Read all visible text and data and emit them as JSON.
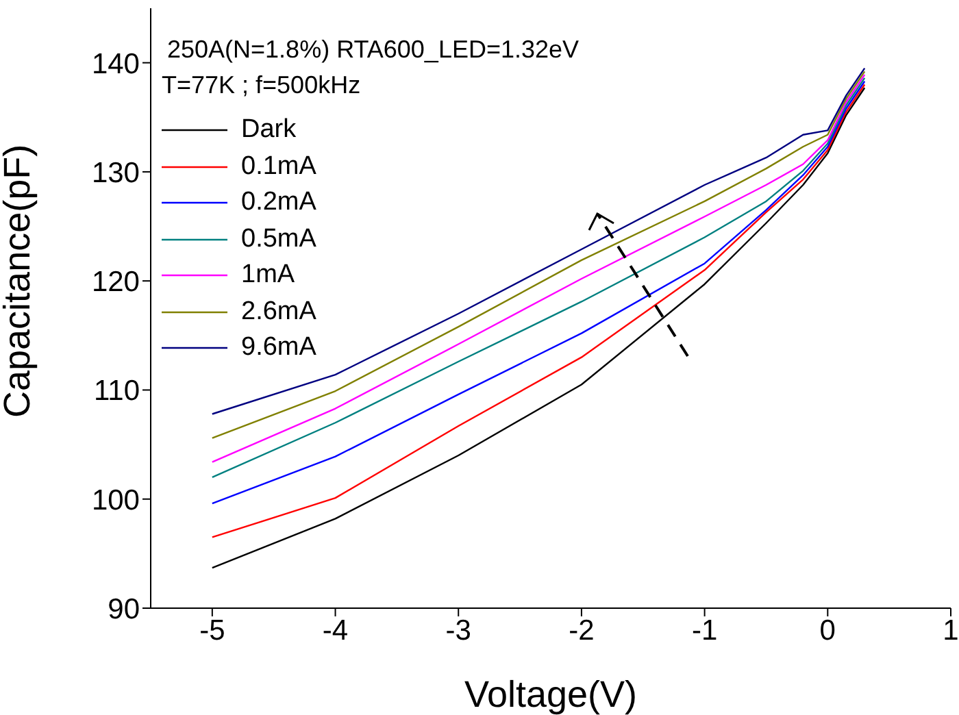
{
  "chart_data": {
    "type": "line",
    "title": "250A(N=1.8%) RTA600_LED=1.32eV",
    "subtitle": "T=77K ; f=500kHz",
    "xlabel": "Voltage(V)",
    "ylabel": "Capacitance(pF)",
    "x": [
      -5,
      -4,
      -3,
      -2,
      -1,
      -0.5,
      -0.2,
      0,
      0.15,
      0.3
    ],
    "series": [
      {
        "name": "Dark",
        "color": "#000000",
        "values": [
          93.7,
          98.2,
          104,
          110.5,
          119.7,
          125.3,
          128.8,
          131.7,
          135.2,
          137.7
        ]
      },
      {
        "name": "0.1mA",
        "color": "#ff0000",
        "values": [
          96.5,
          100.1,
          106.7,
          113,
          121,
          126.3,
          129.3,
          132,
          135.5,
          138
        ]
      },
      {
        "name": "0.2mA",
        "color": "#0000ff",
        "values": [
          99.6,
          103.9,
          109.6,
          115.2,
          121.6,
          126.5,
          129.7,
          132.3,
          135.8,
          138.3
        ]
      },
      {
        "name": "0.5mA",
        "color": "#008080",
        "values": [
          102,
          107,
          112.6,
          118.1,
          124,
          127.3,
          130.1,
          132.6,
          136.1,
          138.6
        ]
      },
      {
        "name": "1mA",
        "color": "#ff00ff",
        "values": [
          103.4,
          108.3,
          114.2,
          120.2,
          125.9,
          128.8,
          130.7,
          132.9,
          136.4,
          138.9
        ]
      },
      {
        "name": "2.6mA",
        "color": "#808000",
        "values": [
          105.6,
          109.9,
          115.8,
          121.9,
          127.3,
          130.3,
          132.3,
          133.4,
          136.7,
          139.2
        ]
      },
      {
        "name": "9.6mA",
        "color": "#000080",
        "values": [
          107.8,
          111.4,
          117,
          122.9,
          128.8,
          131.3,
          133.4,
          133.8,
          137,
          139.5
        ]
      }
    ],
    "xlim": [
      -5.5,
      1
    ],
    "xticks": [
      -5,
      -4,
      -3,
      -2,
      -1,
      0,
      1
    ],
    "ylim": [
      90,
      145
    ],
    "yticks": [
      90,
      100,
      110,
      120,
      130,
      140
    ],
    "grid": false,
    "legend": "top left",
    "marker": "none",
    "line_style": "solid"
  }
}
